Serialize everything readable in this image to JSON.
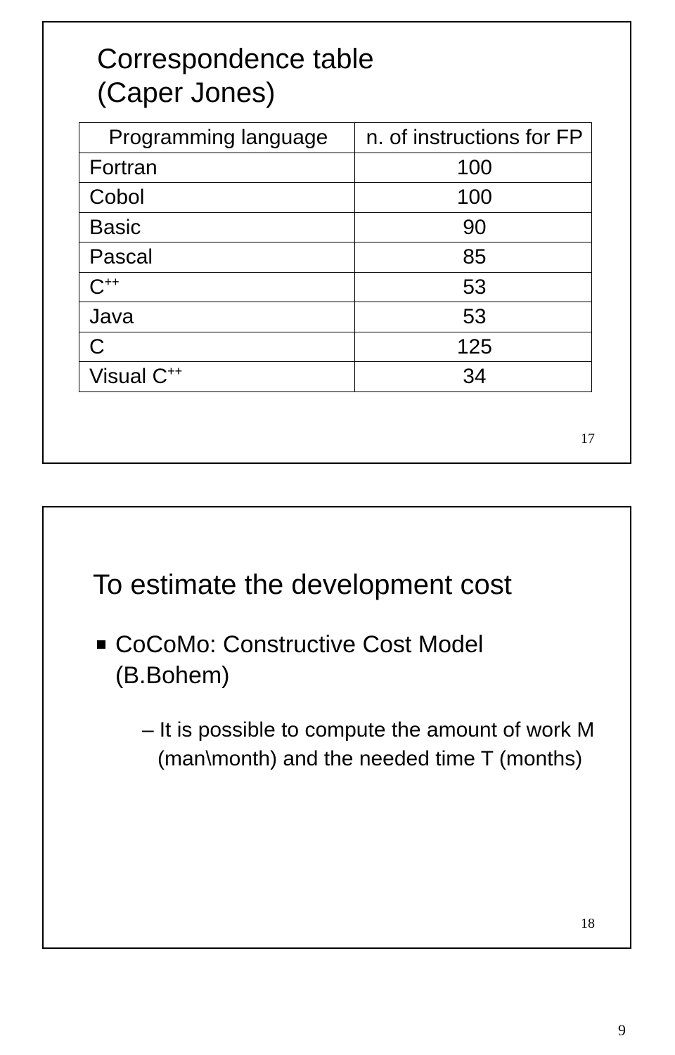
{
  "slide1": {
    "title_l1": "Correspondence table",
    "title_l2": "(Caper Jones)",
    "table": {
      "header_lang": "Programming language",
      "header_n": "n. of instructions for FP",
      "rows": [
        {
          "lang": "Fortran",
          "sup": "",
          "n": "100"
        },
        {
          "lang": "Cobol",
          "sup": "",
          "n": "100"
        },
        {
          "lang": "Basic",
          "sup": "",
          "n": "90"
        },
        {
          "lang": "Pascal",
          "sup": "",
          "n": "85"
        },
        {
          "lang": "C",
          "sup": "++",
          "n": "53"
        },
        {
          "lang": "Java",
          "sup": "",
          "n": "53"
        },
        {
          "lang": "C",
          "sup": "",
          "n": "125"
        },
        {
          "lang": "Visual C",
          "sup": "++",
          "n": "34"
        }
      ]
    },
    "num": "17"
  },
  "slide2": {
    "heading": "To estimate the development cost",
    "bullet1_l1": "CoCoMo: Constructive Cost Model",
    "bullet1_l2": "(B.Bohem)",
    "bullet2": "It is possible to compute the amount of work M (man\\month) and the needed time T (months)",
    "num": "18"
  },
  "page_num": "9",
  "colors": {
    "bg": "#ffffff",
    "text": "#000000",
    "border": "#000000"
  }
}
